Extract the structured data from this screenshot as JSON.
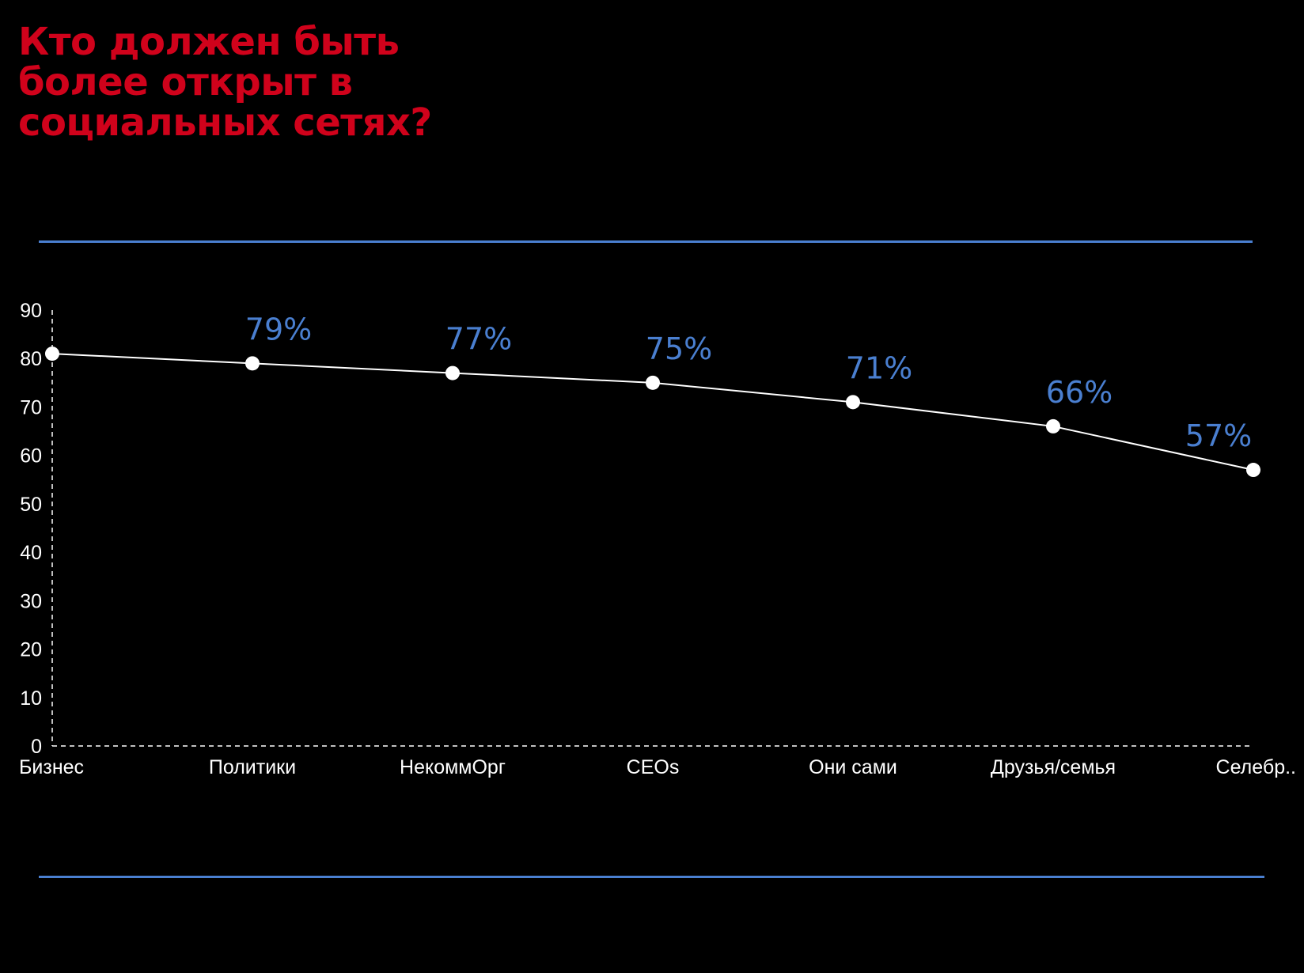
{
  "header": {
    "title": "Кто должен быть более открыт в социальных сетях?"
  },
  "colors": {
    "title": "#d0021b",
    "accent_rule": "#4a7fd0",
    "data_label": "#4a7fd0",
    "line": "#ffffff",
    "background": "#000000"
  },
  "chart_data": {
    "type": "line",
    "title": "Кто должен быть более открыт в социальных сетях?",
    "xlabel": "",
    "ylabel": "",
    "categories": [
      "Бизнес",
      "Политики",
      "НекоммОрг",
      "CEOs",
      "Они сами",
      "Друзья/семья",
      "Селебр.."
    ],
    "series": [
      {
        "values": [
          81,
          79,
          77,
          75,
          71,
          66,
          57
        ],
        "data_labels": [
          "",
          "79%",
          "77%",
          "75%",
          "71%",
          "66%",
          "57%"
        ]
      }
    ],
    "yticks": [
      "0",
      "10",
      "20",
      "30",
      "40",
      "50",
      "60",
      "70",
      "80",
      "90"
    ],
    "ylim": [
      0,
      90
    ],
    "grid": false,
    "legend": "none"
  }
}
